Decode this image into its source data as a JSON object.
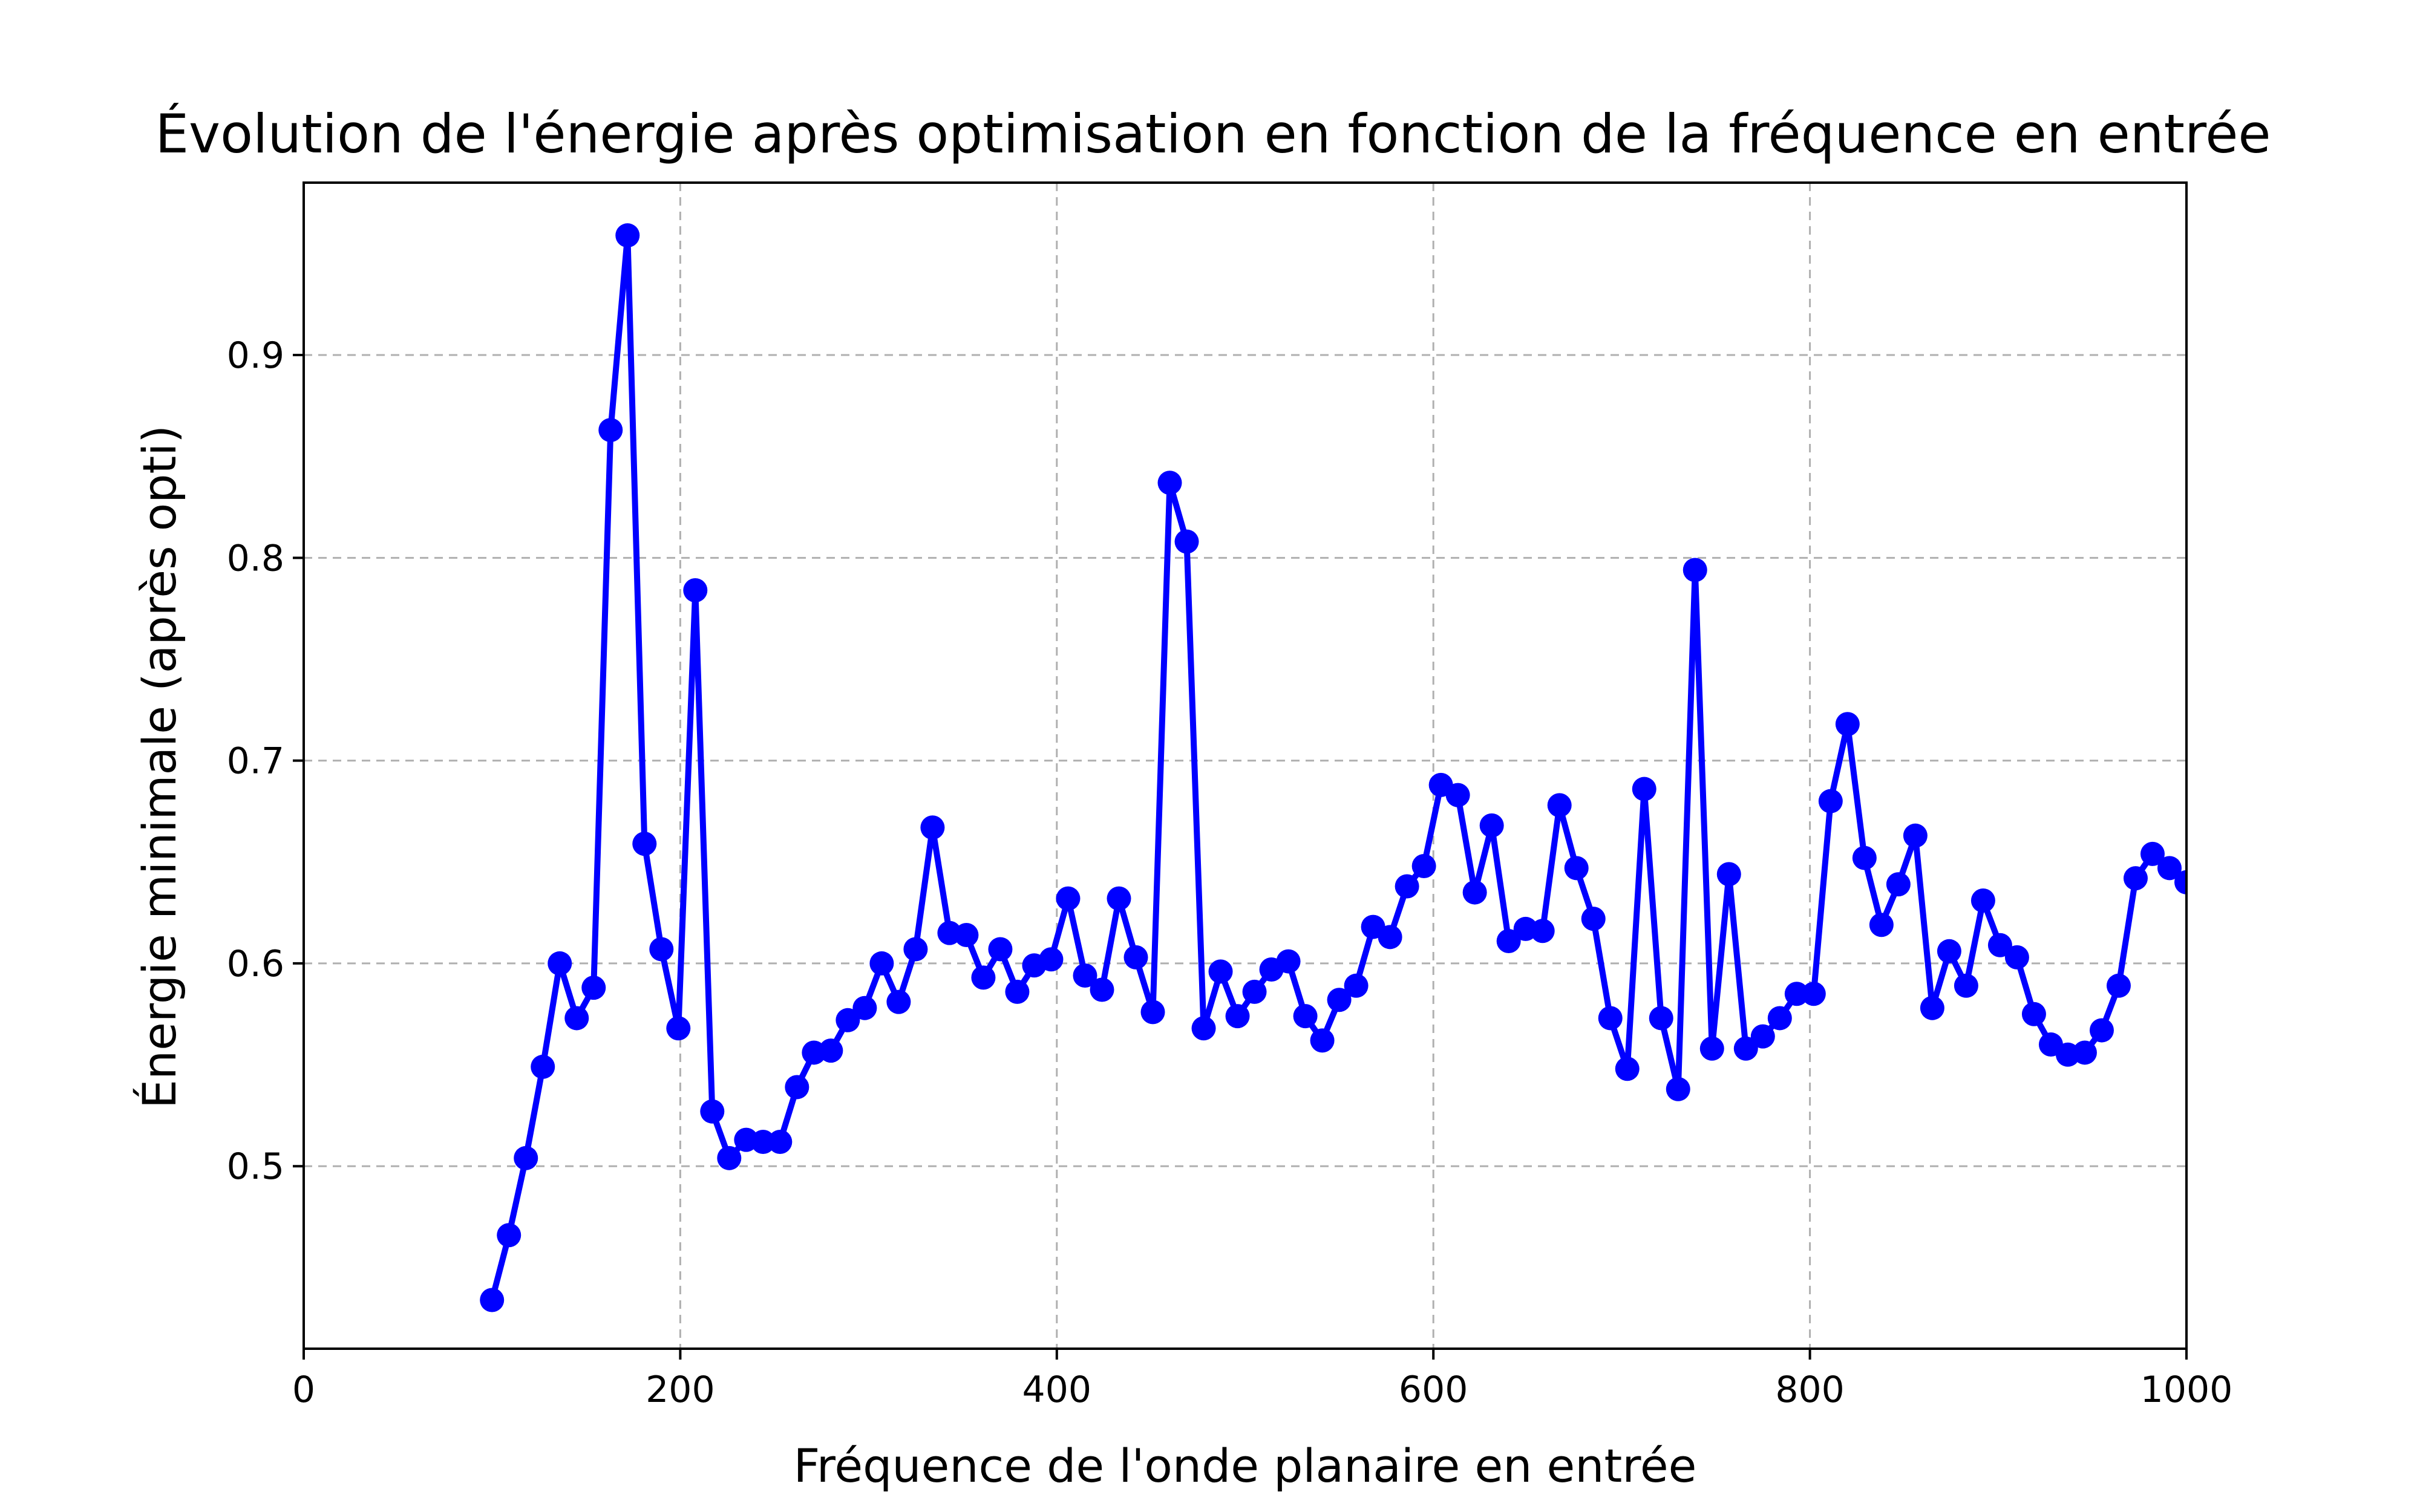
{
  "chart_data": {
    "type": "line",
    "title": "Évolution de l'énergie après optimisation en fonction de la fréquence en entrée",
    "xlabel": "Fréquence de l'onde planaire en entrée",
    "ylabel": "Énergie minimale (après opti)",
    "xlim": [
      0,
      1000
    ],
    "ylim": [
      0.41,
      0.985
    ],
    "xticks": [
      0,
      200,
      400,
      600,
      800,
      1000
    ],
    "xtick_labels": [
      "0",
      "200",
      "400",
      "600",
      "800",
      "1000"
    ],
    "yticks": [
      0.5,
      0.6,
      0.7,
      0.8,
      0.9
    ],
    "ytick_labels": [
      "0.5",
      "0.6",
      "0.7",
      "0.8",
      "0.9"
    ],
    "grid": true,
    "colors": {
      "series": "#0000ff",
      "grid": "#b0b0b0",
      "axes": "#000000"
    },
    "series": [
      {
        "x": [
          100,
          109,
          118,
          127,
          136,
          145,
          154,
          163,
          172,
          181,
          190,
          199,
          208,
          217,
          226,
          235,
          244,
          253,
          262,
          271,
          280,
          289,
          298,
          307,
          316,
          325,
          334,
          343,
          352,
          361,
          370,
          379,
          388,
          397,
          406,
          415,
          424,
          433,
          442,
          451,
          460,
          469,
          478,
          487,
          496,
          505,
          514,
          523,
          532,
          541,
          550,
          559,
          568,
          577,
          586,
          595,
          604,
          613,
          622,
          631,
          640,
          649,
          658,
          667,
          676,
          685,
          694,
          703,
          712,
          721,
          730,
          739,
          748,
          757,
          766,
          775,
          784,
          793,
          802,
          811,
          820,
          829,
          838,
          847,
          856,
          865,
          874,
          883,
          892,
          901,
          910,
          919,
          928,
          937,
          946,
          955,
          964,
          973,
          982,
          991,
          1000
        ],
        "y": [
          0.434,
          0.466,
          0.504,
          0.549,
          0.6,
          0.573,
          0.588,
          0.863,
          0.959,
          0.659,
          0.607,
          0.568,
          0.784,
          0.527,
          0.504,
          0.513,
          0.512,
          0.512,
          0.539,
          0.556,
          0.557,
          0.572,
          0.578,
          0.6,
          0.581,
          0.607,
          0.667,
          0.615,
          0.614,
          0.593,
          0.607,
          0.586,
          0.599,
          0.602,
          0.632,
          0.594,
          0.587,
          0.632,
          0.603,
          0.576,
          0.837,
          0.808,
          0.568,
          0.596,
          0.574,
          0.586,
          0.597,
          0.601,
          0.574,
          0.562,
          0.582,
          0.589,
          0.618,
          0.613,
          0.638,
          0.648,
          0.688,
          0.683,
          0.635,
          0.668,
          0.611,
          0.617,
          0.616,
          0.678,
          0.647,
          0.622,
          0.573,
          0.548,
          0.686,
          0.573,
          0.538,
          0.794,
          0.558,
          0.644,
          0.558,
          0.564,
          0.573,
          0.585,
          0.585,
          0.68,
          0.718,
          0.652,
          0.619,
          0.639,
          0.663,
          0.578,
          0.606,
          0.589,
          0.631,
          0.609,
          0.603,
          0.575,
          0.56,
          0.555,
          0.556,
          0.567,
          0.589,
          0.642,
          0.654,
          0.647,
          0.64
        ]
      }
    ]
  }
}
